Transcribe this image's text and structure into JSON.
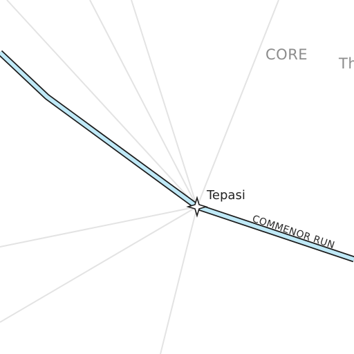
{
  "map": {
    "region_label": "CORE",
    "partial_region_label": "Th",
    "system": {
      "name": "Tepasi",
      "icon": "star-icon"
    },
    "hyperlane": {
      "name": "COMMENOR RUN",
      "color": "#bfe9f7",
      "casing_color": "#1c1c1c"
    },
    "guide_line_color": "#e3e3e3",
    "background": "#ffffff"
  }
}
